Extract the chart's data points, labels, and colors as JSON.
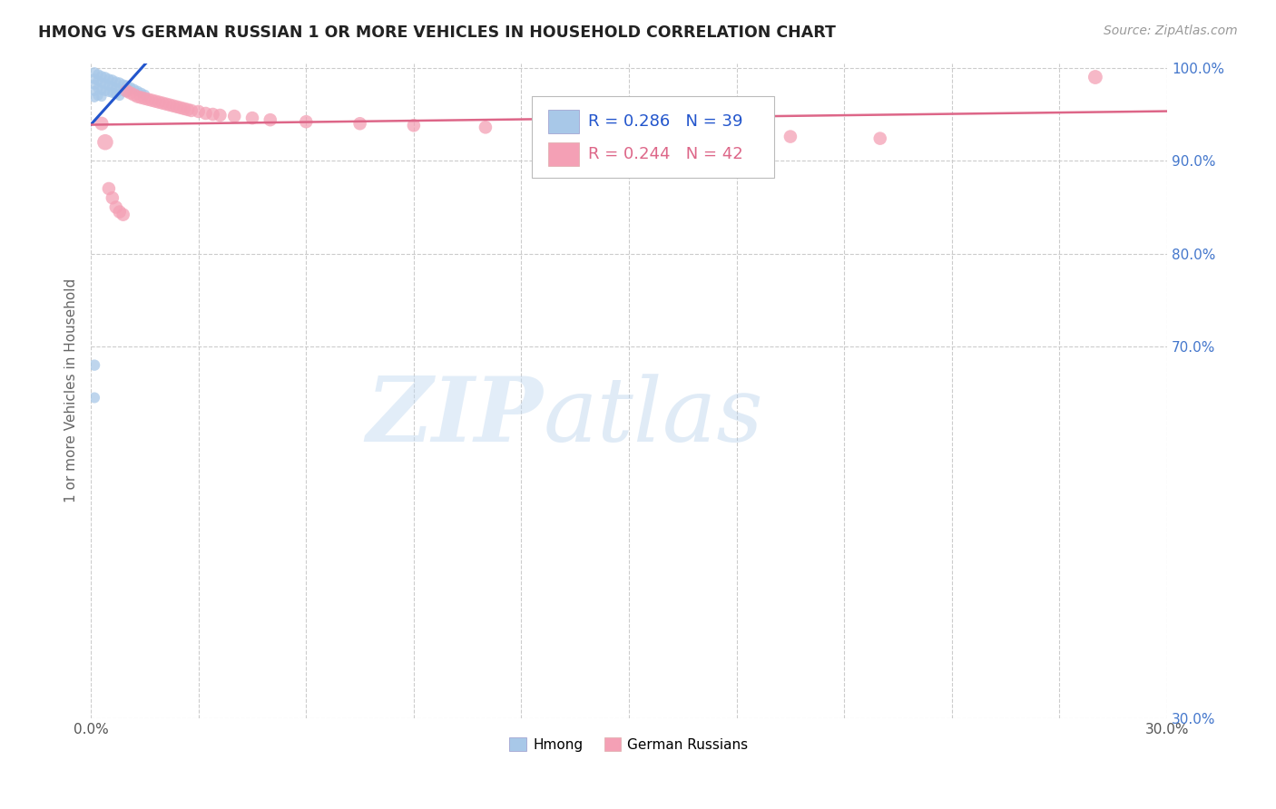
{
  "title": "HMONG VS GERMAN RUSSIAN 1 OR MORE VEHICLES IN HOUSEHOLD CORRELATION CHART",
  "source": "Source: ZipAtlas.com",
  "ylabel": "1 or more Vehicles in Household",
  "xlim": [
    0.0,
    0.3
  ],
  "ylim": [
    0.3,
    1.005
  ],
  "xticks": [
    0.0,
    0.03,
    0.06,
    0.09,
    0.12,
    0.15,
    0.18,
    0.21,
    0.24,
    0.27,
    0.3
  ],
  "yticks": [
    0.3,
    0.7,
    0.8,
    0.9,
    1.0
  ],
  "grid_color": "#cccccc",
  "background_color": "#ffffff",
  "hmong_color": "#a8c8e8",
  "hmong_line_color": "#2255cc",
  "german_color": "#f4a0b5",
  "german_line_color": "#dd6688",
  "hmong_R": 0.286,
  "hmong_N": 39,
  "german_R": 0.244,
  "german_N": 42,
  "watermark_zip": "ZIP",
  "watermark_atlas": "atlas",
  "hmong_x": [
    0.001,
    0.001,
    0.001,
    0.001,
    0.001,
    0.002,
    0.002,
    0.002,
    0.002,
    0.003,
    0.003,
    0.003,
    0.003,
    0.004,
    0.004,
    0.004,
    0.005,
    0.005,
    0.005,
    0.006,
    0.006,
    0.006,
    0.007,
    0.007,
    0.007,
    0.008,
    0.008,
    0.008,
    0.009,
    0.009,
    0.01,
    0.01,
    0.011,
    0.012,
    0.013,
    0.014,
    0.015,
    0.001,
    0.001
  ],
  "hmong_y": [
    0.995,
    0.988,
    0.982,
    0.975,
    0.968,
    0.993,
    0.986,
    0.978,
    0.97,
    0.991,
    0.984,
    0.976,
    0.969,
    0.99,
    0.983,
    0.975,
    0.988,
    0.981,
    0.974,
    0.987,
    0.98,
    0.973,
    0.985,
    0.978,
    0.972,
    0.984,
    0.977,
    0.97,
    0.982,
    0.975,
    0.981,
    0.974,
    0.979,
    0.977,
    0.975,
    0.973,
    0.971,
    0.68,
    0.645
  ],
  "hmong_size": [
    70,
    70,
    65,
    65,
    60,
    70,
    70,
    65,
    65,
    70,
    70,
    65,
    65,
    70,
    70,
    65,
    70,
    70,
    65,
    70,
    70,
    65,
    70,
    70,
    65,
    70,
    70,
    65,
    70,
    70,
    70,
    70,
    70,
    70,
    70,
    70,
    70,
    80,
    75
  ],
  "german_x": [
    0.01,
    0.011,
    0.012,
    0.013,
    0.014,
    0.015,
    0.016,
    0.017,
    0.018,
    0.019,
    0.02,
    0.021,
    0.022,
    0.023,
    0.024,
    0.025,
    0.026,
    0.027,
    0.028,
    0.03,
    0.032,
    0.034,
    0.036,
    0.04,
    0.045,
    0.05,
    0.06,
    0.075,
    0.09,
    0.11,
    0.28,
    0.003,
    0.004,
    0.005,
    0.006,
    0.007,
    0.008,
    0.009,
    0.155,
    0.175,
    0.195,
    0.22
  ],
  "german_y": [
    0.975,
    0.973,
    0.971,
    0.969,
    0.968,
    0.967,
    0.966,
    0.965,
    0.964,
    0.963,
    0.962,
    0.961,
    0.96,
    0.959,
    0.958,
    0.957,
    0.956,
    0.955,
    0.954,
    0.953,
    0.951,
    0.95,
    0.949,
    0.948,
    0.946,
    0.944,
    0.942,
    0.94,
    0.938,
    0.936,
    0.99,
    0.94,
    0.92,
    0.87,
    0.86,
    0.85,
    0.845,
    0.842,
    0.93,
    0.928,
    0.926,
    0.924
  ],
  "german_size": [
    110,
    110,
    110,
    110,
    110,
    110,
    110,
    110,
    110,
    110,
    110,
    110,
    110,
    110,
    110,
    110,
    110,
    110,
    110,
    110,
    110,
    110,
    110,
    110,
    110,
    110,
    110,
    110,
    110,
    110,
    130,
    120,
    160,
    110,
    110,
    110,
    110,
    110,
    110,
    110,
    110,
    110
  ]
}
